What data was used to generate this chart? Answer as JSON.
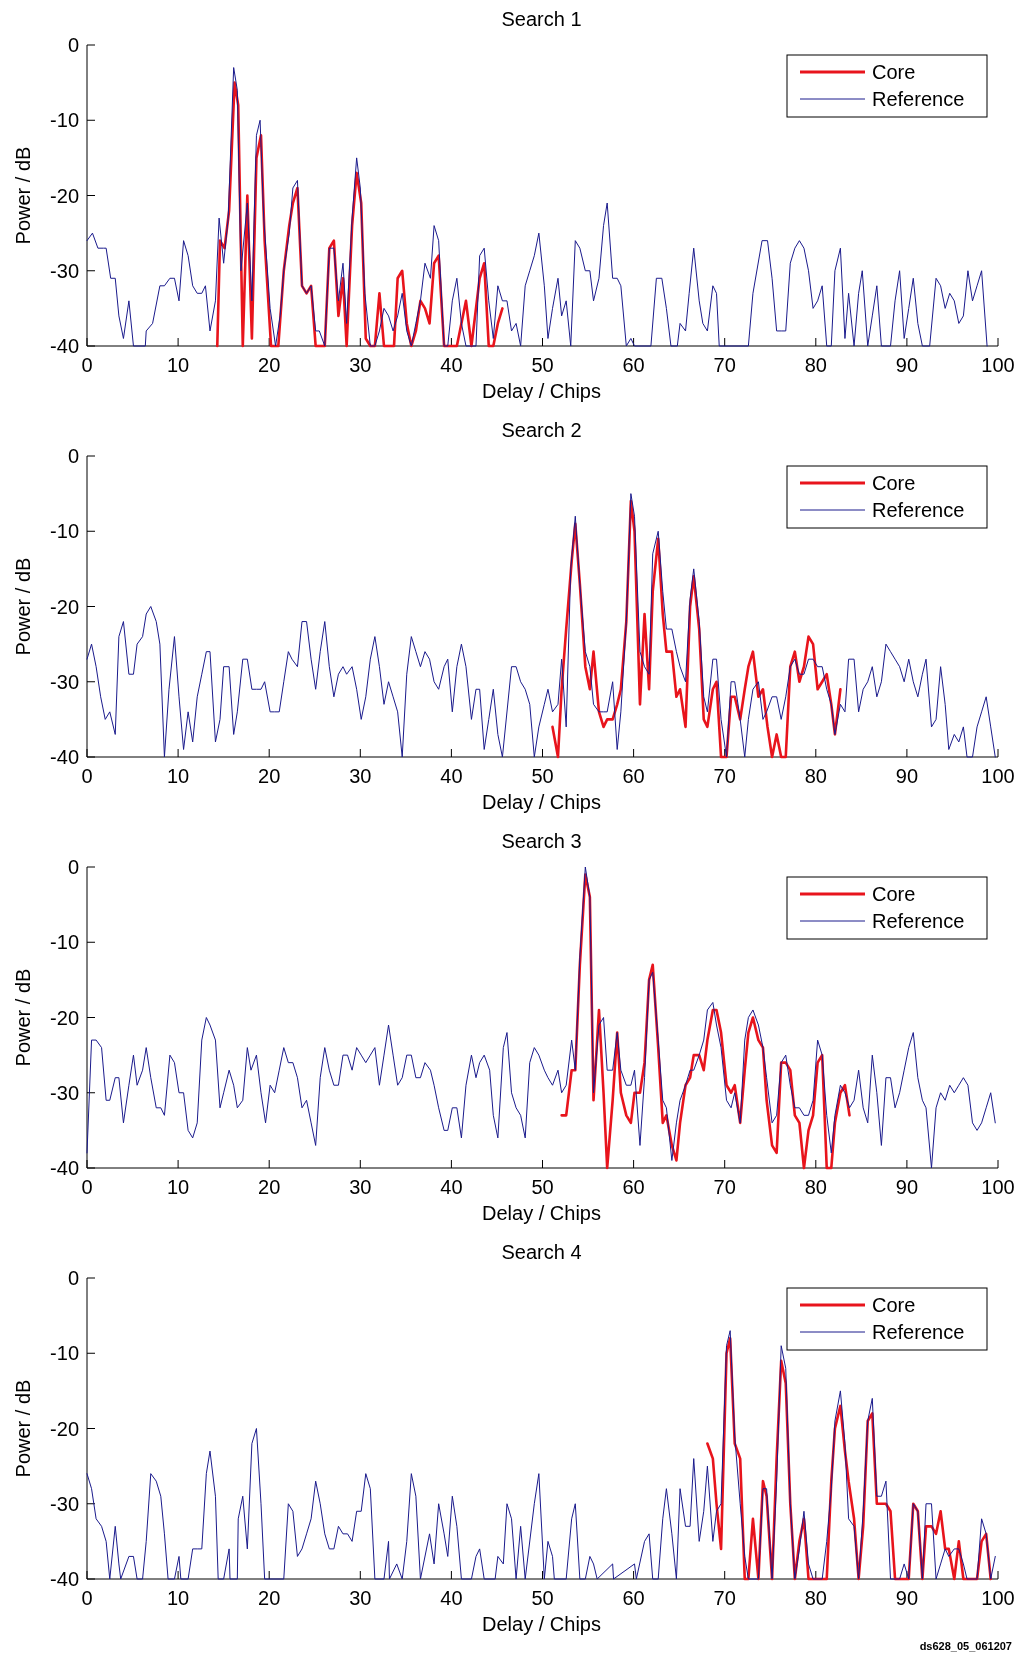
{
  "chart_data": [
    {
      "type": "line",
      "title": "Search 1",
      "xlabel": "Delay / Chips",
      "ylabel": "Power / dB",
      "xlim": [
        0,
        100
      ],
      "ylim": [
        -40,
        0
      ],
      "xticks": [
        0,
        10,
        20,
        30,
        40,
        50,
        60,
        70,
        80,
        90,
        100
      ],
      "yticks": [
        -40,
        -30,
        -20,
        -10,
        0
      ],
      "grid": false,
      "legend": "top right",
      "line_style": "solid",
      "series": [
        {
          "name": "Core",
          "color": "#e8141c",
          "x": [
            14.3,
            14.6,
            15.1,
            15.6,
            16.2,
            16.6,
            17.1,
            17.6,
            18.1,
            18.6,
            19.1,
            19.5,
            20.2,
            21,
            21.6,
            22.2,
            22.6,
            23.1,
            23.6,
            24.1,
            24.6,
            25.1,
            26.1,
            26.6,
            27.1,
            27.6,
            28.1,
            28.5,
            29.1,
            29.6,
            30.1,
            30.6,
            31.1,
            31.6,
            32.1,
            32.6,
            33.7,
            34.1,
            34.6,
            35.1,
            35.6,
            36.1,
            36.6,
            37.1,
            37.6,
            38.1,
            38.6,
            39.2,
            40.6,
            41.1,
            41.6,
            42.2,
            43.1,
            43.6,
            44.1,
            44.6,
            45.1,
            45.6
          ],
          "values": [
            -40,
            -26,
            -27,
            -22,
            -5,
            -8,
            -40,
            -20,
            -39,
            -15,
            -12,
            -26,
            -40,
            -40,
            -30,
            -24,
            -21,
            -19,
            -32,
            -33,
            -32,
            -40,
            -40,
            -27,
            -26,
            -36,
            -31,
            -40,
            -24,
            -17,
            -21,
            -39,
            -40,
            -40,
            -33,
            -40,
            -40,
            -31,
            -30,
            -37,
            -40,
            -38,
            -34,
            -35,
            -37,
            -29,
            -28,
            -40,
            -40,
            -37,
            -34,
            -40,
            -31,
            -29,
            -40,
            -40,
            -37,
            -35
          ]
        },
        {
          "name": "Reference",
          "color": "#1a1a8c",
          "x": [
            0,
            0.6,
            1.2,
            1.8,
            2.1,
            2.6,
            3.1,
            3.5,
            4,
            4.6,
            5.1,
            6.4,
            6.5,
            7.2,
            8,
            8.5,
            9.1,
            9.6,
            10.1,
            10.6,
            11.1,
            11.6,
            12.1,
            12.6,
            13,
            13.5,
            14.1,
            14.5,
            15,
            15.5,
            16.1,
            16.5,
            16.9,
            17.6,
            18.1,
            18.6,
            19,
            19.4,
            20.1,
            20.7,
            21.2,
            21.6,
            22.2,
            22.6,
            23.1,
            23.6,
            24.1,
            24.6,
            25.1,
            25.5,
            26.1,
            26.6,
            27.1,
            27.6,
            28.1,
            28.5,
            29.1,
            29.6,
            30,
            30.5,
            31.1,
            31.6,
            32.1,
            32.6,
            33.1,
            33.6,
            34.1,
            34.6,
            35.1,
            35.6,
            36.1,
            36.6,
            37.1,
            37.7,
            38.1,
            38.6,
            39.2,
            39.6,
            40.1,
            40.6,
            41.1,
            41.6,
            42.1,
            42.7,
            43.1,
            43.6,
            44.1,
            44.6,
            45.1,
            45.6,
            46.1,
            46.6,
            47.1,
            47.6,
            48.1,
            48.6,
            49.1,
            49.6,
            50.2,
            50.6,
            51.1,
            51.7,
            52.1,
            52.6,
            53.1,
            53.6,
            54.1,
            54.7,
            55.2,
            55.6,
            56.2,
            56.7,
            57.1,
            57.7,
            58.2,
            58.6,
            59.2,
            59.7,
            60.1,
            61.9,
            62.5,
            63.1,
            63.6,
            64.1,
            64.8,
            65.1,
            65.7,
            66.1,
            66.6,
            67.2,
            67.6,
            68.1,
            68.7,
            69.1,
            69.4,
            72.6,
            73.1,
            74.1,
            74.7,
            75.2,
            75.7,
            76.2,
            76.7,
            77.2,
            77.7,
            78.2,
            78.7,
            79.2,
            79.7,
            80.2,
            80.7,
            81.2,
            81.7,
            82.1,
            82.7,
            83.2,
            83.6,
            84.2,
            84.7,
            85.1,
            85.7,
            86.2,
            86.7,
            87.2,
            88.2,
            88.7,
            89.2,
            89.7,
            90.2,
            90.7,
            91.2,
            91.7,
            92.5,
            93.2,
            93.7,
            94.2,
            94.7,
            95.2,
            95.7,
            96.2,
            96.7,
            97.2,
            97.7,
            98.2,
            98.8
          ],
          "values": [
            -26,
            -25,
            -27,
            -27,
            -27,
            -31,
            -31,
            -36,
            -39,
            -34,
            -40,
            -40,
            -38,
            -37,
            -32,
            -32,
            -31,
            -31,
            -34,
            -26,
            -28,
            -32,
            -33,
            -33,
            -32,
            -38,
            -34,
            -23,
            -29,
            -23,
            -3,
            -6,
            -30,
            -21,
            -34,
            -12,
            -10,
            -23,
            -35,
            -40,
            -36,
            -30,
            -25,
            -19,
            -18,
            -32,
            -33,
            -32,
            -38,
            -38,
            -40,
            -27,
            -27,
            -34,
            -29,
            -37,
            -23,
            -15,
            -19,
            -33,
            -40,
            -40,
            -38,
            -35,
            -36,
            -38,
            -36,
            -33,
            -38,
            -40,
            -37,
            -34,
            -29,
            -31,
            -24,
            -26,
            -40,
            -40,
            -34,
            -31,
            -37,
            -40,
            -40,
            -40,
            -28,
            -27,
            -34,
            -39,
            -32,
            -34,
            -34,
            -38,
            -37,
            -40,
            -32,
            -30,
            -28,
            -25,
            -32,
            -39,
            -35,
            -31,
            -36,
            -34,
            -40,
            -26,
            -27,
            -30,
            -30,
            -34,
            -31,
            -24,
            -21,
            -31,
            -31,
            -32,
            -40,
            -39,
            -40,
            -40,
            -31,
            -31,
            -35,
            -40,
            -40,
            -37,
            -38,
            -33,
            -27,
            -34,
            -37,
            -38,
            -32,
            -33,
            -40,
            -40,
            -33,
            -26,
            -26,
            -31,
            -38,
            -38,
            -38,
            -29,
            -27,
            -26,
            -27,
            -30,
            -35,
            -34,
            -32,
            -40,
            -40,
            -30,
            -27,
            -39,
            -33,
            -40,
            -33,
            -30,
            -40,
            -36,
            -32,
            -40,
            -40,
            -34,
            -30,
            -39,
            -35,
            -31,
            -37,
            -40,
            -40,
            -31,
            -32,
            -35,
            -33,
            -34,
            -37,
            -36,
            -30,
            -34,
            -32,
            -30,
            -40
          ]
        }
      ]
    },
    {
      "type": "line",
      "title": "Search 2",
      "xlabel": "Delay / Chips",
      "ylabel": "Power / dB",
      "xlim": [
        0,
        100
      ],
      "ylim": [
        -40,
        0
      ],
      "xticks": [
        0,
        10,
        20,
        30,
        40,
        50,
        60,
        70,
        80,
        90,
        100
      ],
      "yticks": [
        -40,
        -30,
        -20,
        -10,
        0
      ],
      "grid": false,
      "legend": "top right",
      "line_style": "solid",
      "series": [
        {
          "name": "Core",
          "color": "#e8141c",
          "x": [
            51.1,
            51.7,
            52.1,
            52.6,
            53.2,
            53.6,
            54.1,
            54.7,
            55.2,
            55.6,
            56.2,
            56.7,
            57.1,
            57.7,
            58.2,
            58.6,
            59.2,
            59.7,
            60.1,
            60.7,
            61.2,
            61.7,
            62.1,
            62.7,
            63.2,
            63.6,
            64.2,
            64.7,
            65.1,
            65.7,
            66.2,
            66.6,
            67.2,
            67.7,
            68.1,
            68.7,
            69.1,
            69.6,
            70.2,
            70.7,
            71.1,
            71.7,
            72.2,
            72.6,
            73.1,
            73.7,
            74.2,
            74.7,
            75.2,
            75.7,
            76.2,
            76.7,
            77.2,
            77.7,
            78.2,
            78.7,
            79.2,
            79.7,
            80.2,
            80.7,
            81.2,
            81.7,
            82.1,
            82.7
          ],
          "values": [
            -36,
            -40,
            -31,
            -23,
            -14,
            -9,
            -17,
            -28,
            -31,
            -26,
            -34,
            -36,
            -35,
            -35,
            -33,
            -31,
            -22,
            -6,
            -10,
            -33,
            -21,
            -31,
            -18,
            -11,
            -21,
            -26,
            -26,
            -32,
            -31,
            -36,
            -20,
            -16,
            -23,
            -35,
            -36,
            -31,
            -30,
            -40,
            -40,
            -32,
            -32,
            -35,
            -31,
            -28,
            -26,
            -32,
            -31,
            -36,
            -40,
            -37,
            -40,
            -40,
            -28,
            -26,
            -30,
            -28,
            -24,
            -25,
            -31,
            -30,
            -29,
            -33,
            -37,
            -31
          ]
        },
        {
          "name": "Reference",
          "color": "#1a1a8c",
          "x": [
            0,
            0.5,
            1,
            1.5,
            2,
            2.5,
            3.1,
            3.5,
            4,
            4.6,
            5.1,
            5.5,
            6.1,
            6.5,
            7,
            7.6,
            8,
            8.5,
            9,
            9.6,
            10.1,
            10.6,
            11.1,
            11.6,
            12.1,
            12.6,
            13.1,
            13.5,
            14.1,
            14.6,
            15,
            15.6,
            16.1,
            16.5,
            17.1,
            17.6,
            18.1,
            18.6,
            19.1,
            19.5,
            20.1,
            20.6,
            21.1,
            21.6,
            22.1,
            22.5,
            23.1,
            23.6,
            24.1,
            24.6,
            25.1,
            25.6,
            26.1,
            26.6,
            27.1,
            27.6,
            28.1,
            28.5,
            29.1,
            29.6,
            30.1,
            30.6,
            31.1,
            31.6,
            32.1,
            32.6,
            33.1,
            33.6,
            34.1,
            34.6,
            35.1,
            35.6,
            36.1,
            36.6,
            37.1,
            37.6,
            38.1,
            38.6,
            39.2,
            39.6,
            40.1,
            40.6,
            41.1,
            41.6,
            42.2,
            42.7,
            43.1,
            43.6,
            44.1,
            44.6,
            45.1,
            45.6,
            46.6,
            47.1,
            47.6,
            48.1,
            48.6,
            49.1,
            49.6,
            50.2,
            50.6,
            51.1,
            51.7,
            52.1,
            52.6,
            53.1,
            53.6,
            54.1,
            54.7,
            55.2,
            55.6,
            56.2,
            56.7,
            57.1,
            57.7,
            58.2,
            58.6,
            59.2,
            59.7,
            60.1,
            60.7,
            61.2,
            61.7,
            62.1,
            62.7,
            63.2,
            63.6,
            64.2,
            64.7,
            65.1,
            65.7,
            66.2,
            66.6,
            67.2,
            67.7,
            68.1,
            68.7,
            69.1,
            69.6,
            70.2,
            70.7,
            71.1,
            71.7,
            72.2,
            72.6,
            73.1,
            73.7,
            74.2,
            74.6,
            75.2,
            75.7,
            76.2,
            76.7,
            77.2,
            77.7,
            78.2,
            78.7,
            79.2,
            79.7,
            80.2,
            80.7,
            81.2,
            81.7,
            82.1,
            82.7,
            83.2,
            83.6,
            84.2,
            84.7,
            85.2,
            85.7,
            86.2,
            86.7,
            87.2,
            87.7,
            88.2,
            88.7,
            89.2,
            89.7,
            90.2,
            90.7,
            91.2,
            91.7,
            92.1,
            92.7,
            93.2,
            93.7,
            94.2,
            94.6,
            95.2,
            95.7,
            96.2,
            96.6,
            97.2,
            97.7,
            98.2,
            98.7,
            99.2,
            99.7
          ],
          "values": [
            -27,
            -25,
            -28,
            -32,
            -35,
            -34,
            -37,
            -24,
            -22,
            -29,
            -29,
            -25,
            -24,
            -21,
            -20,
            -22,
            -25,
            -40,
            -31,
            -24,
            -32,
            -39,
            -34,
            -38,
            -32,
            -29,
            -26,
            -26,
            -38,
            -35,
            -28,
            -28,
            -37,
            -34,
            -27,
            -27,
            -31,
            -31,
            -31,
            -30,
            -34,
            -34,
            -34,
            -30,
            -26,
            -27,
            -28,
            -22,
            -22,
            -27,
            -31,
            -26,
            -22,
            -28,
            -32,
            -29,
            -28,
            -29,
            -28,
            -31,
            -35,
            -32,
            -27,
            -24,
            -28,
            -33,
            -30,
            -32,
            -34,
            -40,
            -29,
            -24,
            -26,
            -28,
            -26,
            -27,
            -30,
            -31,
            -28,
            -27,
            -34,
            -28,
            -25,
            -28,
            -35,
            -31,
            -31,
            -39,
            -35,
            -31,
            -37,
            -40,
            -28,
            -28,
            -30,
            -31,
            -33,
            -40,
            -36,
            -33,
            -31,
            -34,
            -33,
            -27,
            -36,
            -15,
            -8,
            -17,
            -26,
            -28,
            -33,
            -34,
            -34,
            -34,
            -30,
            -39,
            -34,
            -22,
            -5,
            -8,
            -26,
            -28,
            -29,
            -13,
            -10,
            -18,
            -23,
            -23,
            -26,
            -28,
            -30,
            -19,
            -15,
            -22,
            -32,
            -34,
            -27,
            -27,
            -35,
            -40,
            -30,
            -30,
            -35,
            -40,
            -35,
            -31,
            -30,
            -35,
            -34,
            -32,
            -32,
            -35,
            -32,
            -28,
            -27,
            -29,
            -29,
            -27,
            -27,
            -28,
            -28,
            -31,
            -33,
            -37,
            -33,
            -34,
            -27,
            -27,
            -34,
            -31,
            -30,
            -28,
            -32,
            -30,
            -25,
            -26,
            -27,
            -28,
            -30,
            -27,
            -30,
            -32,
            -29,
            -27,
            -36,
            -35,
            -28,
            -33,
            -39,
            -37,
            -38,
            -36,
            -40,
            -40,
            -36,
            -34,
            -32,
            -36,
            -40
          ]
        }
      ]
    },
    {
      "type": "line",
      "title": "Search 3",
      "xlabel": "Delay / Chips",
      "ylabel": "Power / dB",
      "xlim": [
        0,
        100
      ],
      "ylim": [
        -40,
        0
      ],
      "xticks": [
        0,
        10,
        20,
        30,
        40,
        50,
        60,
        70,
        80,
        90,
        100
      ],
      "yticks": [
        -40,
        -30,
        -20,
        -10,
        0
      ],
      "grid": false,
      "legend": "top right",
      "line_style": "solid",
      "series": [
        {
          "name": "Core",
          "color": "#e8141c",
          "x": [
            52.1,
            52.6,
            53.2,
            53.6,
            54.1,
            54.7,
            55.2,
            55.6,
            56.2,
            56.7,
            57.1,
            57.7,
            58.2,
            58.6,
            59.2,
            59.7,
            60.1,
            60.7,
            61.2,
            61.7,
            62.1,
            62.7,
            63.2,
            63.6,
            64.2,
            64.7,
            65.1,
            65.7,
            66.2,
            66.6,
            67.2,
            67.7,
            68.1,
            68.7,
            69.1,
            69.6,
            70.2,
            70.7,
            71.1,
            71.7,
            72.2,
            72.6,
            73.1,
            73.7,
            74.2,
            74.6,
            75.2,
            75.7,
            76.2,
            76.7,
            77.2,
            77.7,
            78.2,
            78.7,
            79.2,
            79.7,
            80.2,
            80.7,
            81.2,
            81.7,
            82.1,
            82.7,
            83.2,
            83.7
          ],
          "values": [
            -33,
            -33,
            -27,
            -27,
            -13,
            -1,
            -4,
            -31,
            -19,
            -30,
            -40,
            -31,
            -22,
            -30,
            -33,
            -34,
            -30,
            -30,
            -26,
            -15,
            -13,
            -24,
            -34,
            -33,
            -37,
            -39,
            -34,
            -29,
            -28,
            -25,
            -25,
            -27,
            -23,
            -19,
            -19,
            -22,
            -29,
            -30,
            -29,
            -34,
            -27,
            -22,
            -20,
            -23,
            -24,
            -31,
            -37,
            -38,
            -26,
            -26,
            -27,
            -33,
            -34,
            -40,
            -35,
            -33,
            -26,
            -25,
            -40,
            -40,
            -34,
            -30,
            -29,
            -33
          ]
        },
        {
          "name": "Reference",
          "color": "#1a1a8c",
          "x": [
            0,
            0.5,
            1,
            1.6,
            2.1,
            2.5,
            3.1,
            3.5,
            4,
            4.6,
            5.1,
            5.5,
            6.1,
            6.5,
            7,
            7.6,
            8.1,
            8.5,
            9.1,
            9.6,
            10.1,
            10.6,
            11.1,
            11.6,
            12.1,
            12.6,
            13.1,
            13.5,
            14.1,
            14.6,
            15,
            15.6,
            16.1,
            16.5,
            17.1,
            17.6,
            18,
            18.6,
            19.1,
            19.6,
            20.1,
            20.6,
            21.1,
            21.6,
            22.1,
            22.6,
            23.1,
            23.6,
            24.1,
            24.6,
            25.1,
            25.6,
            26.1,
            26.6,
            27.1,
            27.6,
            28.1,
            28.6,
            29.1,
            29.6,
            30.1,
            30.6,
            31.1,
            31.6,
            32.1,
            32.6,
            33.1,
            33.6,
            34.1,
            34.6,
            35.1,
            35.6,
            36.1,
            36.6,
            37.1,
            37.7,
            38.1,
            38.6,
            39.2,
            39.6,
            40.1,
            40.6,
            41.1,
            41.6,
            42.2,
            42.7,
            43.1,
            43.6,
            44.2,
            44.6,
            45.1,
            45.7,
            46.1,
            46.6,
            47.1,
            47.6,
            48.1,
            48.6,
            49.1,
            49.6,
            50.2,
            50.6,
            51.1,
            51.7,
            52.1,
            52.6,
            53.2,
            53.6,
            54.1,
            54.7,
            55.2,
            55.6,
            56.2,
            56.7,
            57.1,
            57.7,
            58.2,
            58.6,
            59.2,
            59.7,
            60.1,
            60.7,
            61.2,
            61.7,
            62.1,
            62.7,
            63.2,
            63.6,
            64.2,
            64.7,
            65.1,
            65.7,
            66.2,
            66.6,
            67.2,
            67.7,
            68.1,
            68.7,
            69.1,
            69.6,
            70.2,
            70.7,
            71.1,
            71.7,
            72.2,
            72.6,
            73.1,
            73.7,
            74.2,
            74.6,
            75.2,
            75.7,
            76.2,
            76.7,
            77.2,
            77.7,
            78.2,
            78.7,
            79.2,
            79.7,
            80.2,
            80.7,
            81.2,
            81.7,
            82.1,
            82.7,
            83.2,
            83.7,
            84.2,
            84.7,
            85.2,
            85.7,
            86.2,
            86.7,
            87.2,
            87.7,
            88.2,
            88.7,
            89.2,
            89.7,
            90.2,
            90.7,
            91.2,
            91.7,
            92.1,
            92.7,
            93.2,
            93.7,
            94.2,
            94.7,
            95.2,
            95.7,
            96.2,
            96.7,
            97.2,
            97.7,
            98.2,
            98.7,
            99.2,
            99.7
          ],
          "values": [
            -38,
            -23,
            -23,
            -24,
            -31,
            -31,
            -28,
            -28,
            -34,
            -29,
            -25,
            -29,
            -27,
            -24,
            -28,
            -32,
            -32,
            -33,
            -25,
            -26,
            -30,
            -30,
            -35,
            -36,
            -34,
            -23,
            -20,
            -21,
            -23,
            -32,
            -30,
            -27,
            -29,
            -32,
            -31,
            -24,
            -27,
            -25,
            -30,
            -34,
            -29,
            -30,
            -27,
            -24,
            -26,
            -26,
            -28,
            -32,
            -31,
            -34,
            -37,
            -28,
            -24,
            -27,
            -29,
            -29,
            -25,
            -25,
            -27,
            -24,
            -25,
            -26,
            -25,
            -24,
            -29,
            -25,
            -21,
            -25,
            -29,
            -28,
            -25,
            -25,
            -28,
            -28,
            -26,
            -27,
            -29,
            -32,
            -35,
            -35,
            -32,
            -32,
            -36,
            -29,
            -25,
            -28,
            -26,
            -25,
            -27,
            -33,
            -36,
            -24,
            -22,
            -30,
            -32,
            -33,
            -36,
            -26,
            -24,
            -25,
            -27,
            -28,
            -29,
            -27,
            -30,
            -29,
            -23,
            -27,
            -12,
            0,
            -4,
            -30,
            -21,
            -20,
            -27,
            -27,
            -22,
            -27,
            -29,
            -29,
            -27,
            -37,
            -28,
            -15,
            -14,
            -23,
            -31,
            -32,
            -39,
            -34,
            -31,
            -29,
            -27,
            -27,
            -25,
            -23,
            -19,
            -18,
            -21,
            -24,
            -31,
            -32,
            -30,
            -34,
            -23,
            -20,
            -19,
            -21,
            -24,
            -28,
            -34,
            -33,
            -26,
            -25,
            -29,
            -32,
            -32,
            -33,
            -33,
            -31,
            -23,
            -25,
            -33,
            -38,
            -33,
            -29,
            -30,
            -32,
            -31,
            -27,
            -32,
            -34,
            -25,
            -30,
            -37,
            -28,
            -28,
            -32,
            -30,
            -27,
            -24,
            -22,
            -28,
            -31,
            -32,
            -40,
            -32,
            -30,
            -31,
            -29,
            -30,
            -29,
            -28,
            -29,
            -34,
            -35,
            -34,
            -32,
            -30,
            -34
          ]
        }
      ]
    },
    {
      "type": "line",
      "title": "Search 4",
      "xlabel": "Delay / Chips",
      "ylabel": "Power / dB",
      "xlim": [
        0,
        100
      ],
      "ylim": [
        -40,
        0
      ],
      "xticks": [
        0,
        10,
        20,
        30,
        40,
        50,
        60,
        70,
        80,
        90,
        100
      ],
      "yticks": [
        -40,
        -30,
        -20,
        -10,
        0
      ],
      "grid": false,
      "legend": "top right",
      "line_style": "solid",
      "annotations": [
        "ds628_05_061207"
      ],
      "series": [
        {
          "name": "Core",
          "color": "#e8141c",
          "x": [
            68.1,
            68.7,
            69.1,
            69.6,
            70.2,
            70.6,
            71.1,
            71.7,
            72.2,
            72.6,
            73.1,
            73.7,
            74.2,
            74.6,
            75.2,
            75.7,
            76.2,
            76.7,
            77.2,
            77.7,
            78.2,
            78.7,
            79.2,
            81.2,
            81.7,
            82.1,
            82.7,
            83.2,
            83.6,
            84.2,
            84.7,
            85.2,
            85.7,
            86.2,
            86.7,
            87.2,
            87.7,
            88.2,
            88.7,
            90.2,
            90.7,
            91.2,
            91.7,
            92.1,
            92.7,
            93.2,
            93.7,
            94.2,
            94.6,
            95.2,
            95.7,
            96.2,
            97.7,
            98.2,
            98.7,
            99.2
          ],
          "values": [
            -22,
            -24,
            -30,
            -36,
            -10,
            -8,
            -22,
            -24,
            -40,
            -40,
            -32,
            -40,
            -27,
            -29,
            -40,
            -24,
            -11,
            -14,
            -30,
            -40,
            -35,
            -32,
            -40,
            -40,
            -27,
            -20,
            -17,
            -23,
            -27,
            -32,
            -40,
            -33,
            -19,
            -18,
            -30,
            -30,
            -30,
            -31,
            -40,
            -40,
            -30,
            -31,
            -40,
            -33,
            -33,
            -34,
            -31,
            -36,
            -36,
            -40,
            -35,
            -40,
            -40,
            -35,
            -34,
            -40
          ]
        },
        {
          "name": "Reference",
          "color": "#1a1a8c",
          "x": [
            0,
            0.5,
            1,
            1.6,
            2.1,
            2.5,
            3.1,
            3.5,
            3.7,
            4.6,
            5.1,
            5.5,
            6.1,
            6.5,
            7,
            7.6,
            8.1,
            8.5,
            8.9,
            9.6,
            10.1,
            10.3,
            11.1,
            11.6,
            12.1,
            12.6,
            13.1,
            13.5,
            14.1,
            14.4,
            15,
            15.6,
            15.7,
            16.5,
            16.6,
            17.1,
            17.6,
            18.1,
            18.6,
            19.1,
            19.5,
            21.6,
            22.1,
            22.6,
            23.1,
            23.6,
            24.1,
            24.6,
            25.1,
            25.6,
            26.1,
            26.6,
            27.1,
            27.6,
            28.1,
            28.6,
            29.1,
            29.6,
            30.1,
            30.6,
            31.1,
            31.6,
            32.6,
            33.1,
            33.2,
            34,
            34.6,
            35.1,
            35.6,
            36.1,
            36.6,
            37.6,
            38.1,
            38.6,
            39.2,
            39.6,
            40.1,
            40.6,
            41.1,
            42.2,
            42.7,
            43.1,
            43.6,
            44.8,
            45.1,
            45.7,
            46.1,
            46.6,
            47.1,
            47.6,
            48.1,
            49.1,
            49.6,
            50.2,
            50.6,
            51.1,
            51.3,
            52.6,
            53.2,
            53.6,
            54.1,
            54.7,
            55.2,
            55.6,
            56,
            57.7,
            57.8,
            60.1,
            60.3,
            61.2,
            61.7,
            62.1,
            62.7,
            63.2,
            63.6,
            64.2,
            64.7,
            65.1,
            65.7,
            66.2,
            66.6,
            67.2,
            67.7,
            68.1,
            68.7,
            69.1,
            69.6,
            70.2,
            70.6,
            71.1,
            71.7,
            72.2,
            72.6,
            73.1,
            73.7,
            74.2,
            74.6,
            75.2,
            75.7,
            76.2,
            76.7,
            77.2,
            77.7,
            78.2,
            78.7,
            79.2,
            79.7,
            80.7,
            81.2,
            81.7,
            82.1,
            82.7,
            83.2,
            83.6,
            84.2,
            84.7,
            85.2,
            85.7,
            86.2,
            86.7,
            87.2,
            87.7,
            88.2,
            89.2,
            89.7,
            90.2,
            90.7,
            91.2,
            91.7,
            92.1,
            92.7,
            93.2,
            93.7,
            94.2,
            94.6,
            95.2,
            95.7,
            96.2,
            96.6,
            97.7,
            98.2,
            98.7,
            99.2,
            99.7
          ],
          "values": [
            -26,
            -28,
            -32,
            -33,
            -35,
            -40,
            -33,
            -38,
            -40,
            -37,
            -37,
            -40,
            -40,
            -35,
            -26,
            -27,
            -29,
            -34,
            -40,
            -40,
            -37,
            -40,
            -40,
            -36,
            -36,
            -36,
            -26,
            -23,
            -29,
            -40,
            -40,
            -36,
            -40,
            -40,
            -32,
            -29,
            -36,
            -22,
            -20,
            -30,
            -40,
            -40,
            -30,
            -31,
            -37,
            -36,
            -34,
            -32,
            -27,
            -30,
            -34,
            -36,
            -36,
            -33,
            -34,
            -34,
            -35,
            -31,
            -31,
            -26,
            -28,
            -40,
            -40,
            -35,
            -40,
            -38,
            -40,
            -35,
            -26,
            -29,
            -40,
            -34,
            -38,
            -30,
            -34,
            -37,
            -29,
            -33,
            -40,
            -40,
            -37,
            -36,
            -40,
            -40,
            -37,
            -38,
            -30,
            -32,
            -40,
            -33,
            -40,
            -30,
            -26,
            -40,
            -35,
            -37,
            -40,
            -40,
            -32,
            -30,
            -40,
            -40,
            -37,
            -38,
            -40,
            -38,
            -40,
            -38,
            -40,
            -35,
            -34,
            -40,
            -40,
            -32,
            -28,
            -34,
            -40,
            -28,
            -33,
            -33,
            -24,
            -35,
            -31,
            -25,
            -35,
            -31,
            -30,
            -9,
            -7,
            -21,
            -30,
            -37,
            -40,
            -40,
            -40,
            -28,
            -28,
            -40,
            -27,
            -9,
            -12,
            -30,
            -40,
            -36,
            -31,
            -38,
            -40,
            -40,
            -35,
            -28,
            -19,
            -15,
            -22,
            -32,
            -33,
            -40,
            -31,
            -19,
            -16,
            -29,
            -29,
            -27,
            -40,
            -40,
            -38,
            -40,
            -30,
            -31,
            -40,
            -30,
            -30,
            -40,
            -38,
            -36,
            -37,
            -36,
            -36,
            -38,
            -40,
            -40,
            -32,
            -34,
            -40,
            -37
          ]
        }
      ]
    }
  ]
}
